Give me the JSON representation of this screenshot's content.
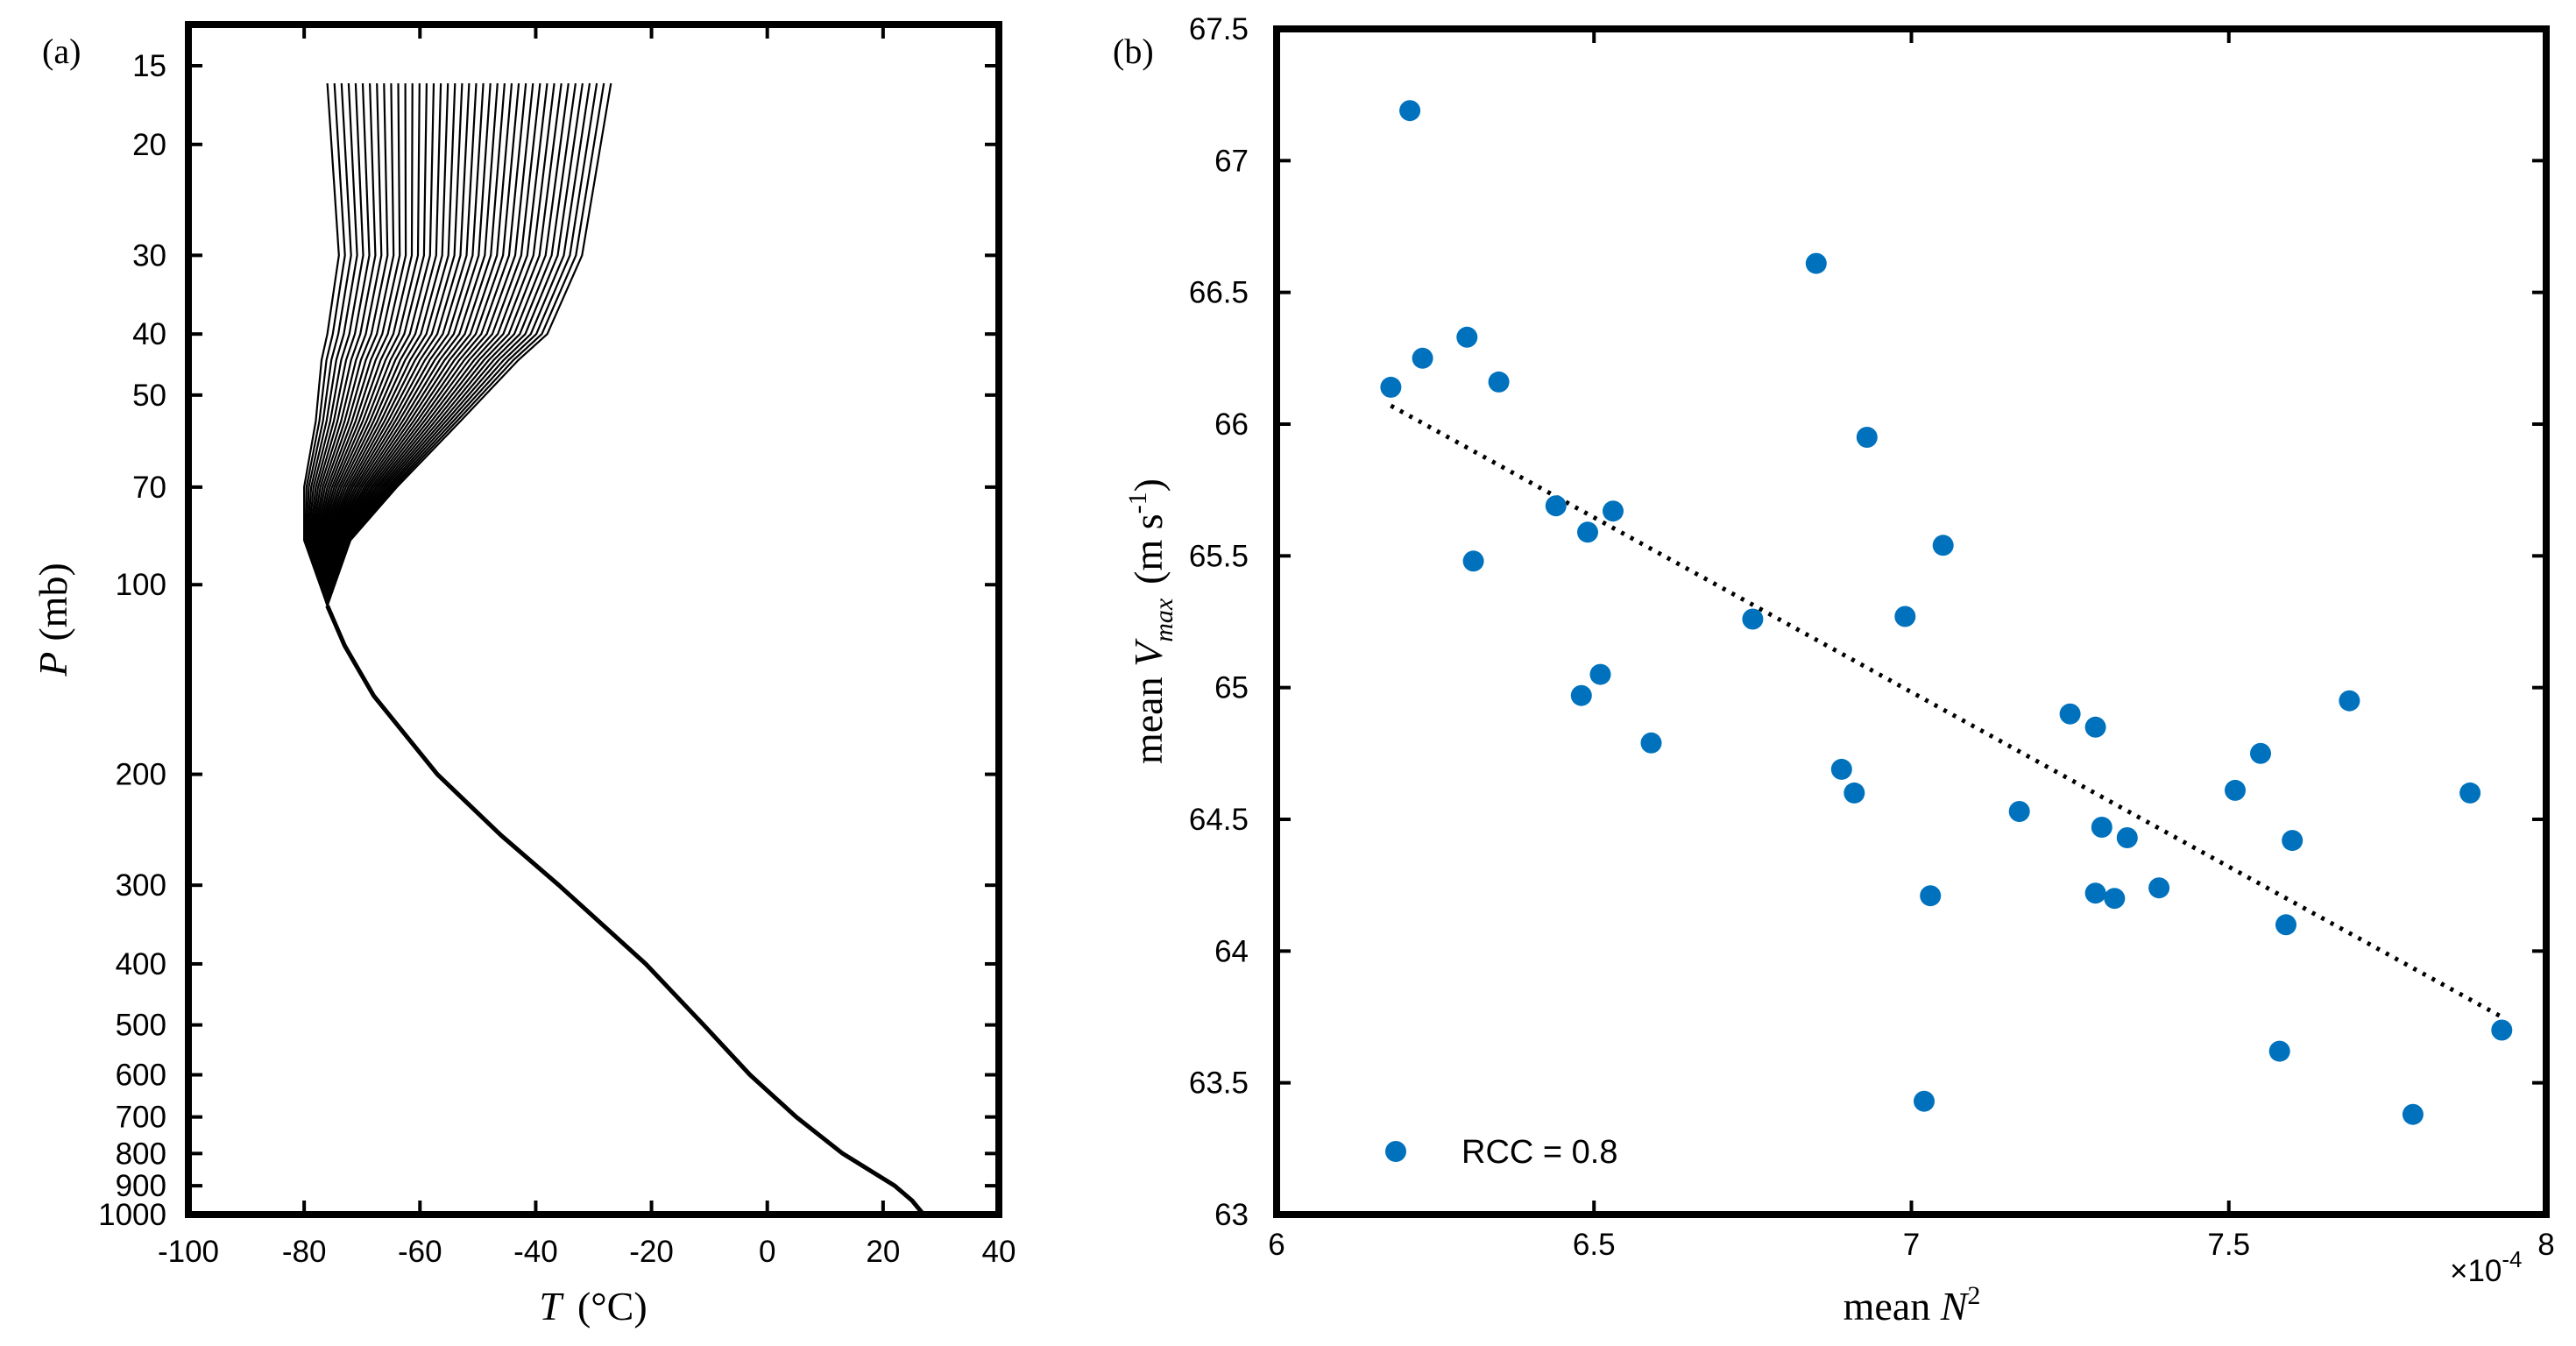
{
  "colors": {
    "axis": "#000000",
    "profile": "#000000",
    "scatter": "#0072BD",
    "fit": "#000000",
    "background": "#ffffff"
  },
  "chart_data": [
    {
      "panel_label": "(a)",
      "type": "line",
      "title": "",
      "xlabel": {
        "var": "T",
        "unit": "(°C)"
      },
      "ylabel": {
        "var": "P",
        "unit": "(mb)"
      },
      "xlim": [
        -100,
        40
      ],
      "x_ticks": [
        -100,
        -80,
        -60,
        -40,
        -20,
        0,
        20,
        40
      ],
      "ylim": [
        15,
        1000
      ],
      "y_scale": "log",
      "y_reversed": true,
      "y_ticks": [
        15,
        20,
        30,
        40,
        50,
        70,
        100,
        200,
        300,
        400,
        500,
        600,
        700,
        800,
        900,
        1000
      ],
      "grid": false,
      "profile_count": 41,
      "lower_profile": [
        {
          "p": 1000,
          "t": 27
        },
        {
          "p": 950,
          "t": 25
        },
        {
          "p": 900,
          "t": 22
        },
        {
          "p": 800,
          "t": 13
        },
        {
          "p": 700,
          "t": 5
        },
        {
          "p": 600,
          "t": -3
        },
        {
          "p": 500,
          "t": -11
        },
        {
          "p": 400,
          "t": -21
        },
        {
          "p": 300,
          "t": -36
        },
        {
          "p": 250,
          "t": -46
        },
        {
          "p": 200,
          "t": -57
        },
        {
          "p": 150,
          "t": -68
        },
        {
          "p": 125,
          "t": -73
        },
        {
          "p": 108,
          "t": -76
        }
      ],
      "upper_profiles": {
        "levels": [
          108,
          85,
          70,
          55,
          44,
          40,
          30,
          16
        ],
        "t_min_member": [
          -76,
          -80,
          -80,
          -78,
          -77,
          -76,
          -74,
          -76
        ],
        "t_max_member": [
          -76,
          -72,
          -64,
          -53,
          -43,
          -38,
          -32,
          -27
        ]
      }
    },
    {
      "panel_label": "(b)",
      "type": "scatter",
      "title": "",
      "xlabel": {
        "prefix": "mean ",
        "var": "N",
        "sup": "2"
      },
      "ylabel": {
        "prefix": "mean ",
        "var": "V",
        "sub": "max",
        "unit_text": "(m s",
        "unit_sup": "-1",
        "unit_close": ")"
      },
      "xlim": [
        6,
        8
      ],
      "x_ticks": [
        6,
        6.5,
        7,
        7.5,
        8
      ],
      "x_exponent": {
        "base": "×10",
        "exp": "-4"
      },
      "ylim": [
        63,
        67.5
      ],
      "y_ticks": [
        63,
        63.5,
        64,
        64.5,
        65,
        65.5,
        66,
        66.5,
        67,
        67.5
      ],
      "grid": false,
      "legend": {
        "label": "RCC = 0.8",
        "position": "bottom-left"
      },
      "fit_line": {
        "x": [
          6.18,
          7.93
        ],
        "y": [
          66.07,
          63.75
        ],
        "style": "dotted"
      },
      "points": [
        {
          "x": 6.21,
          "y": 67.19
        },
        {
          "x": 6.18,
          "y": 66.14
        },
        {
          "x": 6.23,
          "y": 66.25
        },
        {
          "x": 6.3,
          "y": 66.33
        },
        {
          "x": 6.35,
          "y": 66.16
        },
        {
          "x": 6.31,
          "y": 65.48
        },
        {
          "x": 6.44,
          "y": 65.69
        },
        {
          "x": 6.49,
          "y": 65.59
        },
        {
          "x": 6.53,
          "y": 65.67
        },
        {
          "x": 6.51,
          "y": 65.05
        },
        {
          "x": 6.48,
          "y": 64.97
        },
        {
          "x": 6.59,
          "y": 64.79
        },
        {
          "x": 6.75,
          "y": 65.26
        },
        {
          "x": 6.85,
          "y": 66.61
        },
        {
          "x": 6.93,
          "y": 65.95
        },
        {
          "x": 6.89,
          "y": 64.69
        },
        {
          "x": 6.91,
          "y": 64.6
        },
        {
          "x": 6.99,
          "y": 65.27
        },
        {
          "x": 7.05,
          "y": 65.54
        },
        {
          "x": 7.03,
          "y": 64.21
        },
        {
          "x": 7.02,
          "y": 63.43
        },
        {
          "x": 7.17,
          "y": 64.53
        },
        {
          "x": 7.25,
          "y": 64.9
        },
        {
          "x": 7.29,
          "y": 64.85
        },
        {
          "x": 7.3,
          "y": 64.47
        },
        {
          "x": 7.34,
          "y": 64.43
        },
        {
          "x": 7.29,
          "y": 64.22
        },
        {
          "x": 7.32,
          "y": 64.2
        },
        {
          "x": 7.39,
          "y": 64.24
        },
        {
          "x": 7.51,
          "y": 64.61
        },
        {
          "x": 7.55,
          "y": 64.75
        },
        {
          "x": 7.6,
          "y": 64.42
        },
        {
          "x": 7.59,
          "y": 64.1
        },
        {
          "x": 7.58,
          "y": 63.62
        },
        {
          "x": 7.69,
          "y": 64.95
        },
        {
          "x": 7.79,
          "y": 63.38
        },
        {
          "x": 7.88,
          "y": 64.6
        },
        {
          "x": 7.93,
          "y": 63.7
        }
      ]
    }
  ]
}
